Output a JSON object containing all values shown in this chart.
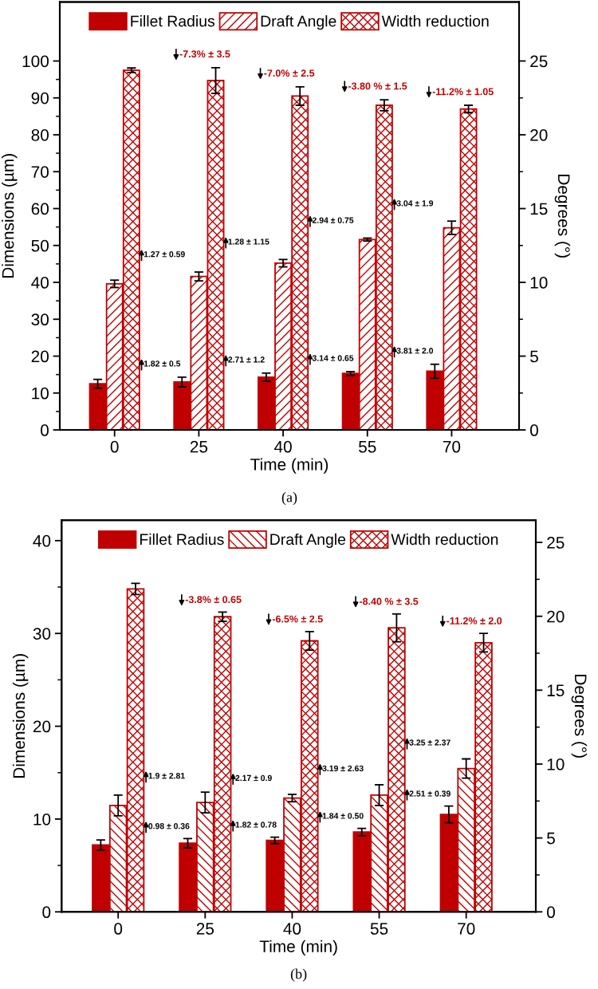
{
  "chart_data": [
    {
      "type": "bar",
      "xlabel": "Time (min)",
      "ylabel": "Dimensions (µm)",
      "y2label": "Degrees (°)",
      "categories": [
        "0",
        "25",
        "40",
        "55",
        "70"
      ],
      "series": [
        {
          "name": "Fillet Radius",
          "color": "#c00000",
          "values": [
            12.5,
            13.0,
            14.3,
            15.3,
            15.9
          ],
          "errors": [
            1.2,
            1.3,
            1.1,
            0.5,
            1.9
          ]
        },
        {
          "name": "Draft Angle",
          "color": "#c00000",
          "axis": "y2",
          "values": [
            9.9,
            10.4,
            11.3,
            12.9,
            13.7
          ],
          "errors": [
            0.25,
            0.3,
            0.25,
            0.1,
            0.45
          ]
        },
        {
          "name": "Width reduction",
          "color": "#c00000",
          "values": [
            97.5,
            94.7,
            90.5,
            88.0,
            87.0
          ],
          "errors": [
            0.6,
            3.5,
            2.5,
            1.5,
            1.0
          ]
        }
      ],
      "ylim": [
        0,
        116
      ],
      "yticks": [
        0,
        {
          "value": 5,
          "label": null
        },
        10,
        {
          "value": 15,
          "label": null
        },
        20,
        {
          "value": 25,
          "label": null
        },
        30,
        {
          "value": 35,
          "label": null
        },
        40,
        {
          "value": 45,
          "label": null
        },
        50,
        {
          "value": 55,
          "label": null
        },
        60,
        {
          "value": 65,
          "label": null
        },
        70,
        {
          "value": 75,
          "label": null
        },
        80,
        {
          "value": 85,
          "label": null
        },
        90,
        {
          "value": 95,
          "label": null
        },
        100
      ],
      "y2lim": [
        0,
        29.0
      ],
      "y2ticks": [
        0,
        {
          "value": 2.5,
          "label": null
        },
        5,
        {
          "value": 7.5,
          "label": null
        },
        10,
        {
          "value": 12.5,
          "label": null
        },
        15,
        {
          "value": 17.5,
          "label": null
        },
        20,
        {
          "value": 22.5,
          "label": null
        },
        25
      ],
      "legend": "top",
      "annotations": [
        "-7.3% ± 3.5",
        "-7.0% ± 2.5",
        "-3.80 % ± 1.5",
        "-11.2% ± 1.05",
        "1.27 ± 0.59",
        "1.28 ± 1.15",
        "2.94 ± 0.75",
        "3.04 ± 1.9",
        "1.82 ± 0.5",
        "2.71 ± 1.2",
        "3.14 ± 0.65",
        "3.81 ± 2.0",
        "(a)"
      ]
    },
    {
      "type": "bar",
      "xlabel": "Time (min)",
      "ylabel": "Dimensions (µm)",
      "y2label": "Degrees (°)",
      "categories": [
        "0",
        "25",
        "40",
        "55",
        "70"
      ],
      "series": [
        {
          "name": "Fillet Radius",
          "color": "#c00000",
          "values": [
            7.2,
            7.4,
            7.7,
            8.6,
            10.5
          ],
          "errors": [
            0.55,
            0.5,
            0.35,
            0.4,
            0.9
          ]
        },
        {
          "name": "Draft Angle",
          "color": "#c00000",
          "axis": "y2",
          "values": [
            7.2,
            7.4,
            7.7,
            7.9,
            9.7
          ],
          "errors": [
            0.7,
            0.7,
            0.25,
            0.7,
            0.65
          ]
        },
        {
          "name": "Width reduction",
          "color": "#c00000",
          "values": [
            34.8,
            31.8,
            29.2,
            30.6,
            29.0
          ],
          "errors": [
            0.6,
            0.5,
            1.0,
            1.5,
            1.0
          ]
        }
      ],
      "ylim": [
        0,
        42.2
      ],
      "yticks": [
        0,
        {
          "value": 5,
          "label": null
        },
        10,
        {
          "value": 15,
          "label": null
        },
        20,
        {
          "value": 25,
          "label": null
        },
        30,
        {
          "value": 35,
          "label": null
        },
        40
      ],
      "y2lim": [
        0,
        26.5
      ],
      "y2ticks": [
        0,
        {
          "value": 2.5,
          "label": null
        },
        5,
        {
          "value": 7.5,
          "label": null
        },
        10,
        {
          "value": 12.5,
          "label": null
        },
        15,
        {
          "value": 17.5,
          "label": null
        },
        20,
        {
          "value": 22.5,
          "label": null
        },
        25
      ],
      "legend": "top",
      "annotations": [
        "-3.8% ± 0.65",
        "-6.5% ± 2.5",
        "-8.40 % ± 3.5",
        "-11.2% ± 2.0",
        "1.9 ± 2.81",
        "2.17 ± 0.9",
        "3.19 ± 2.63",
        "3.25 ± 2.37",
        "0.98 ± 0.36",
        "1.82 ± 0.78",
        "1.84 ± 0.50",
        "2.51 ± 0.39",
        "(b)"
      ]
    }
  ]
}
